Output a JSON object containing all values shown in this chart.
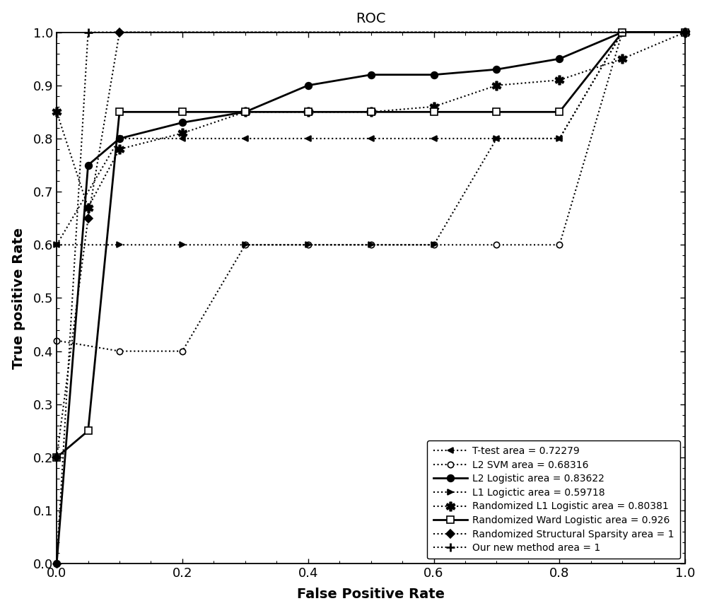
{
  "title": "ROC",
  "xlabel": "False Positive Rate",
  "ylabel": "True positive Rate",
  "xlim": [
    -0.02,
    1.02
  ],
  "ylim": [
    -0.02,
    1.05
  ],
  "series": {
    "ttest": {
      "label": "T-test area = 0.72279",
      "x": [
        0,
        0.1,
        0.2,
        0.3,
        0.4,
        0.5,
        0.6,
        0.7,
        0.8,
        0.9,
        1.0
      ],
      "y": [
        0.6,
        0.8,
        0.8,
        0.8,
        0.8,
        0.8,
        0.8,
        0.8,
        0.8,
        1.0,
        1.0
      ],
      "linestyle": "dotted",
      "linewidth": 1.5,
      "marker": "<",
      "markersize": 6,
      "color": "black"
    },
    "l2svm": {
      "label": "L2 SVM area = 0.68316",
      "x": [
        0,
        0.1,
        0.2,
        0.3,
        0.4,
        0.5,
        0.6,
        0.7,
        0.8,
        0.9,
        1.0
      ],
      "y": [
        0.42,
        0.4,
        0.4,
        0.6,
        0.6,
        0.6,
        0.6,
        0.6,
        0.6,
        1.0,
        1.0
      ],
      "linestyle": "dotted",
      "linewidth": 1.5,
      "marker": "o",
      "markersize": 6,
      "color": "black",
      "markerfacecolor": "white"
    },
    "l2log": {
      "label": "L2 Logistic area = 0.83622",
      "x": [
        0,
        0.05,
        0.1,
        0.2,
        0.3,
        0.4,
        0.5,
        0.6,
        0.7,
        0.8,
        0.9,
        1.0
      ],
      "y": [
        0,
        0.75,
        0.8,
        0.83,
        0.85,
        0.9,
        0.92,
        0.92,
        0.93,
        0.95,
        1.0,
        1.0
      ],
      "linestyle": "solid",
      "linewidth": 2.0,
      "marker": "o",
      "markersize": 7,
      "color": "black",
      "markerfacecolor": "black"
    },
    "l1log": {
      "label": "L1 Logictic area = 0.59718",
      "x": [
        0,
        0.1,
        0.2,
        0.3,
        0.4,
        0.5,
        0.6,
        0.7,
        0.8,
        0.9,
        1.0
      ],
      "y": [
        0.6,
        0.6,
        0.6,
        0.6,
        0.6,
        0.6,
        0.6,
        0.8,
        0.8,
        1.0,
        1.0
      ],
      "linestyle": "dotted",
      "linewidth": 1.5,
      "marker": ">",
      "markersize": 6,
      "color": "black"
    },
    "rl1": {
      "label": "Randomized L1 Logistic area = 0.80381",
      "x": [
        0,
        0.05,
        0.1,
        0.2,
        0.3,
        0.4,
        0.5,
        0.6,
        0.7,
        0.8,
        0.9,
        1.0
      ],
      "y": [
        0.85,
        0.67,
        0.78,
        0.81,
        0.85,
        0.85,
        0.85,
        0.86,
        0.9,
        0.91,
        0.95,
        1.0
      ],
      "linestyle": "dotted",
      "linewidth": 1.5,
      "marker": "P",
      "markersize": 7,
      "color": "black"
    },
    "rward": {
      "label": "Randomized Ward Logistic area = 0.926",
      "x": [
        0,
        0.05,
        0.1,
        0.2,
        0.3,
        0.4,
        0.5,
        0.6,
        0.7,
        0.8,
        0.9,
        1.0
      ],
      "y": [
        0.2,
        0.25,
        0.85,
        0.85,
        0.85,
        0.85,
        0.85,
        0.85,
        0.85,
        0.85,
        1.0,
        1.0
      ],
      "linestyle": "solid",
      "linewidth": 2.0,
      "marker": "s",
      "markersize": 7,
      "color": "black",
      "markerfacecolor": "white"
    },
    "rss": {
      "label": "Randomized Structural Sparsity area = 1",
      "x": [
        0,
        0.05,
        0.1,
        1.0
      ],
      "y": [
        0.2,
        0.65,
        1.0,
        1.0
      ],
      "linestyle": "dotted",
      "linewidth": 1.5,
      "marker": "D",
      "markersize": 6,
      "color": "black"
    },
    "new": {
      "label": "Our new method area = 1",
      "x": [
        0,
        0.05,
        1.0
      ],
      "y": [
        0,
        1.0,
        1.0
      ],
      "linestyle": "dotted",
      "linewidth": 1.5,
      "marker": "+",
      "markersize": 9,
      "color": "black"
    }
  }
}
